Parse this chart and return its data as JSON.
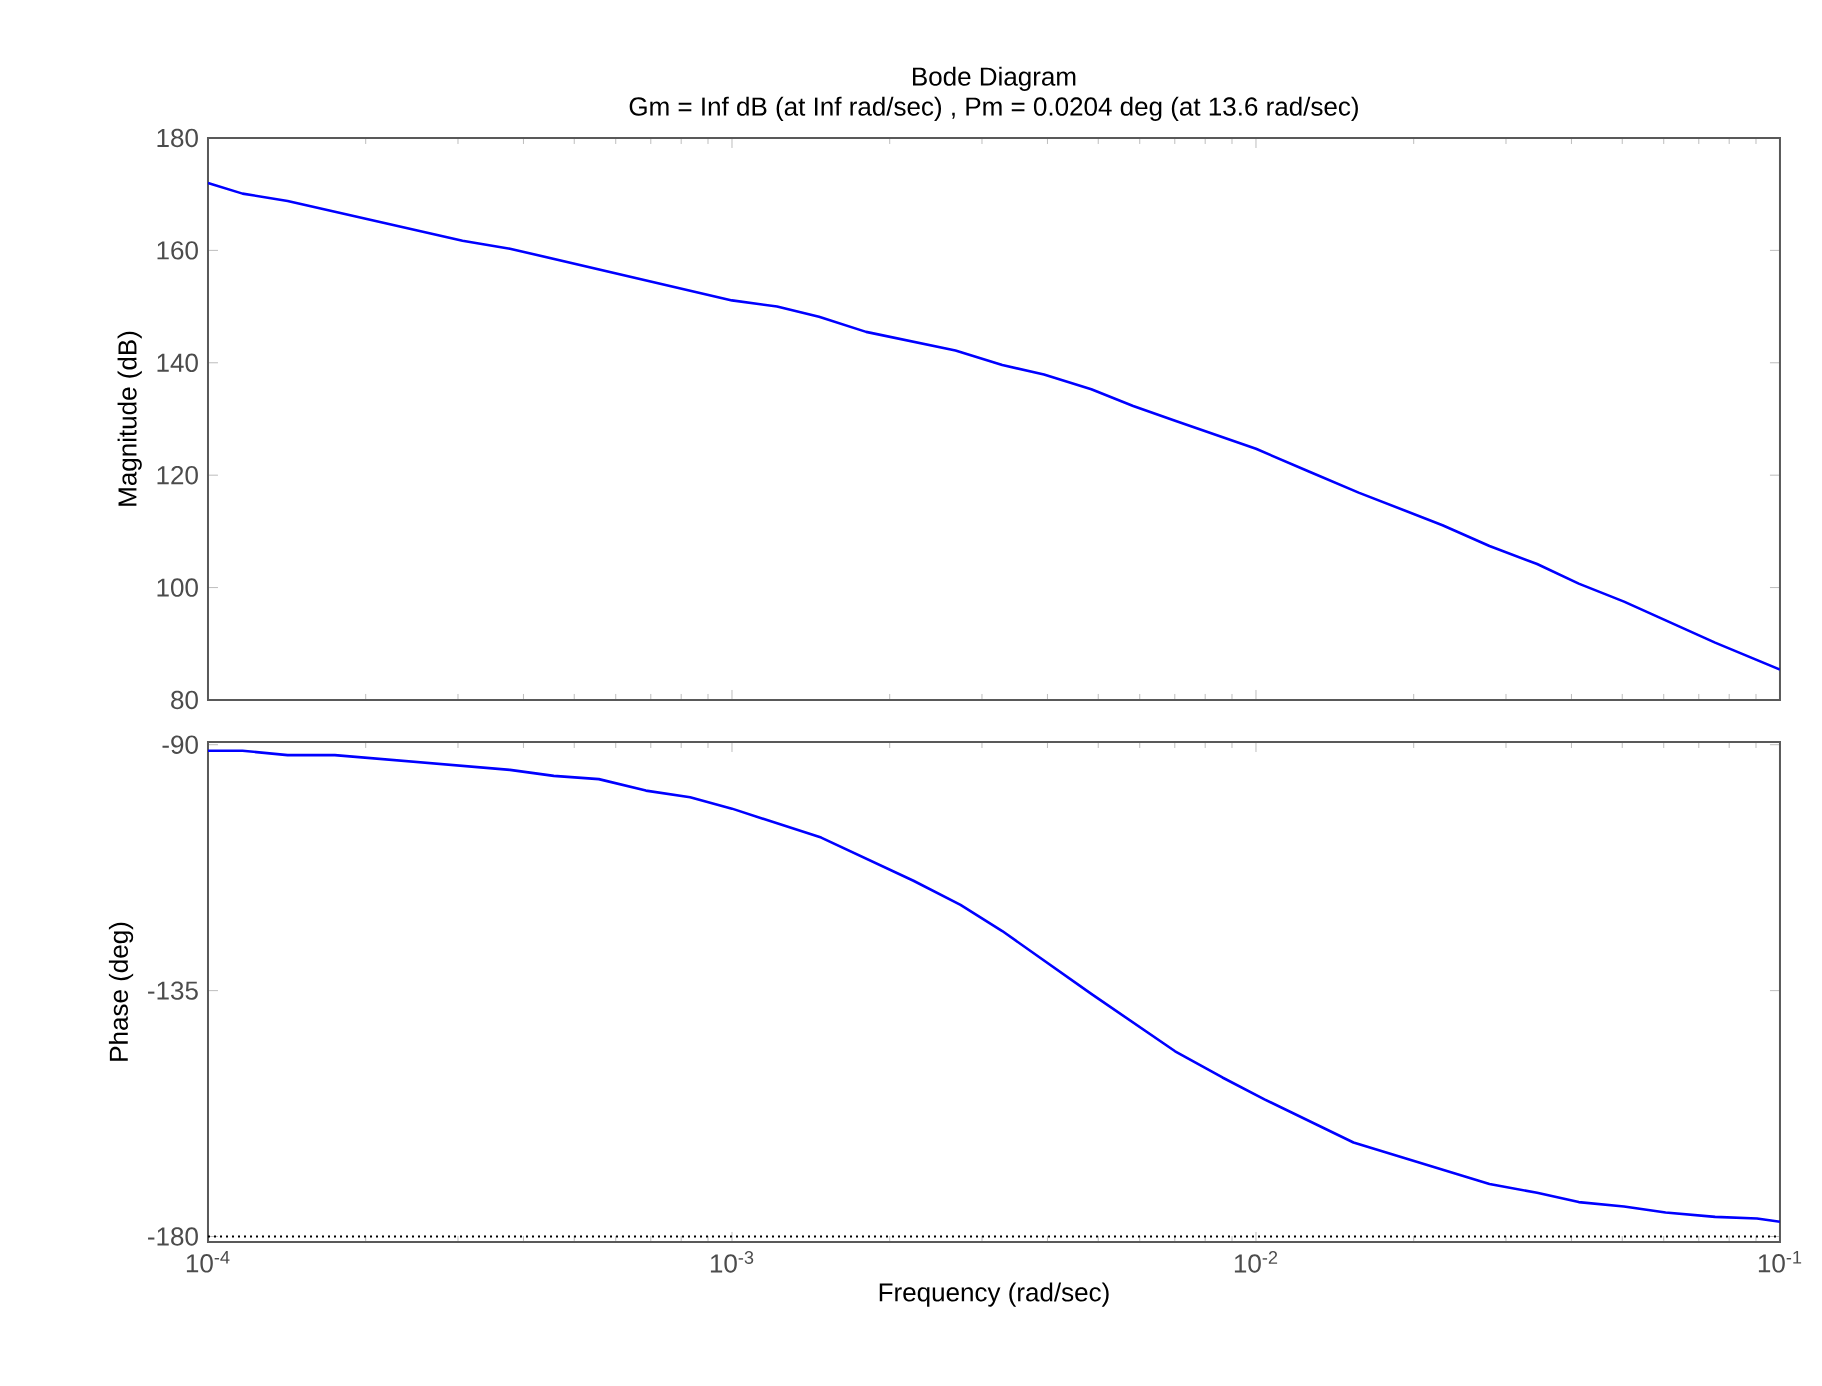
{
  "chart_data": [
    {
      "type": "line",
      "title": "Bode Diagram",
      "subtitle": "Gm = Inf dB (at Inf rad/sec) ,  Pm = 0.0204 deg (at 13.6 rad/sec)",
      "ylabel": "Magnitude (dB)",
      "log": "x",
      "tick_labels": "y",
      "xlim": [
        0.0001,
        0.1
      ],
      "xticks": [
        0.0001,
        0.001,
        0.01,
        0.1
      ],
      "ylim": [
        80,
        180
      ],
      "yticks": [
        80,
        100,
        120,
        140,
        160,
        180
      ],
      "series": [
        {
          "color": "#0000ff",
          "x": [
            0.0001,
            0.0001164,
            0.0001419,
            0.000306,
            0.000377,
            0.001,
            0.001219,
            0.001466,
            0.001803,
            0.00267,
            0.00328,
            0.00394,
            0.00485,
            0.00583,
            0.00701,
            0.01,
            0.01265,
            0.0157,
            0.0227,
            0.0279,
            0.0344,
            0.0413,
            0.0504,
            0.0752,
            0.1
          ],
          "values": [
            172.0,
            170.1,
            168.8,
            161.7,
            160.3,
            151.1,
            150.0,
            148.2,
            145.5,
            142.2,
            139.6,
            137.9,
            135.3,
            132.3,
            129.7,
            124.7,
            120.6,
            116.9,
            111.1,
            107.4,
            104.2,
            100.7,
            97.5,
            90.2,
            85.4
          ]
        }
      ]
    },
    {
      "type": "line",
      "xlabel": "Frequency  (rad/sec)",
      "ylabel": "Phase (deg)",
      "log": "x",
      "xlim": [
        0.0001,
        0.1
      ],
      "xticks": [
        {
          "value": 0.0001,
          "label": "10$^{-4}$"
        },
        {
          "value": 0.001,
          "label": "10$^{-3}$"
        },
        {
          "value": 0.01,
          "label": "10$^{-2}$"
        },
        {
          "value": 0.1,
          "label": "10$^{-1}$"
        }
      ],
      "ylim": [
        -181,
        -89.5
      ],
      "yticks": [
        -180,
        -135,
        -90
      ],
      "ref_lines": [
        {
          "axis": "y",
          "value": -180,
          "color": "#000000",
          "line_style": "dotted"
        }
      ],
      "series": [
        {
          "color": "#0000ff",
          "x": [
            0.0001,
            0.0001164,
            0.0001419,
            0.0001746,
            0.000377,
            0.000457,
            0.000557,
            0.000685,
            0.000832,
            0.001,
            0.00148,
            0.00222,
            0.00273,
            0.00328,
            0.00485,
            0.00701,
            0.00863,
            0.01038,
            0.01535,
            0.0279,
            0.0344,
            0.0413,
            0.0504,
            0.0605,
            0.0752,
            0.0904,
            0.1
          ],
          "values": [
            -91.1,
            -91.1,
            -91.9,
            -91.9,
            -94.6,
            -95.7,
            -96.3,
            -98.4,
            -99.6,
            -101.7,
            -107.0,
            -114.9,
            -119.3,
            -124.1,
            -135.6,
            -146.1,
            -150.9,
            -154.9,
            -162.8,
            -170.4,
            -172.0,
            -173.7,
            -174.5,
            -175.6,
            -176.4,
            -176.7,
            -177.3
          ]
        }
      ]
    }
  ]
}
